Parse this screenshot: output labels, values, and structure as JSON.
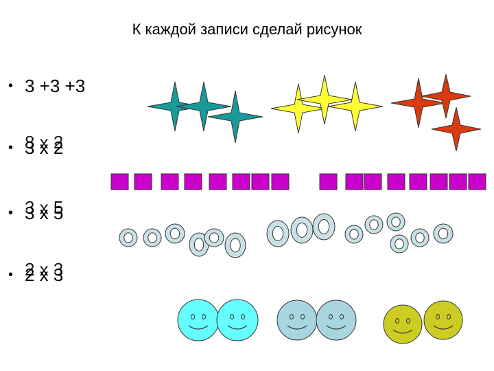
{
  "title": "К каждой записи сделай рисунок",
  "bullet": "•",
  "rows": [
    {
      "expr": "3 +3 +3"
    },
    {
      "expr": "3 х 2",
      "overlap": "8 х 2"
    },
    {
      "expr": "3 х 5",
      "overlap": "3 х 5"
    },
    {
      "expr": "2 х 3",
      "overlap": "2 х 3"
    }
  ],
  "colors": {
    "star_teal": "#179a9a",
    "star_yellow": "#ffff33",
    "star_red": "#d93a10",
    "square": "#cc00cc",
    "ring": "#c8e0e6",
    "smile_cyan": "#66ffff",
    "smile_blue": "#a8d6e0",
    "smile_olive": "#cccc22"
  }
}
